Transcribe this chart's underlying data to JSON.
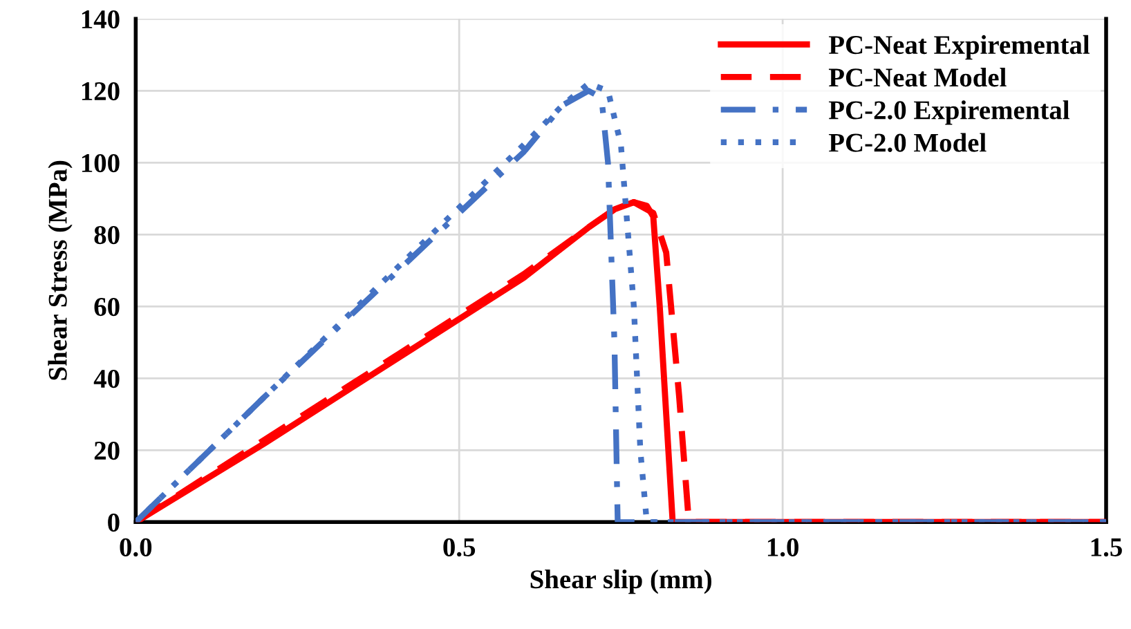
{
  "chart_data": {
    "type": "line",
    "xlabel": "Shear slip (mm)",
    "ylabel": "Shear Stress (MPa)",
    "xlim": [
      0,
      1.5
    ],
    "xticks": [
      {
        "value": 0,
        "label": "0.0"
      },
      0.5,
      {
        "value": 1,
        "label": "1.0"
      },
      1.5
    ],
    "ylim": [
      0,
      140
    ],
    "yticks": [
      0,
      20,
      40,
      60,
      80,
      100,
      120,
      140
    ],
    "grid": true,
    "legend": "top right",
    "series": [
      {
        "name": "PC-Neat Expiremental",
        "color": "#ff0000",
        "line_style": "solid",
        "x": [
          0,
          0.2,
          0.4,
          0.6,
          0.7,
          0.74,
          0.77,
          0.79,
          0.8,
          0.81,
          0.82,
          0.83,
          0.9,
          1.2,
          1.5
        ],
        "values": [
          0,
          22,
          45,
          68,
          82,
          87,
          89,
          88,
          85,
          60,
          30,
          0,
          0,
          0,
          0
        ]
      },
      {
        "name": "PC-Neat Model",
        "color": "#ff0000",
        "line_style": "dashed",
        "x": [
          0,
          0.2,
          0.4,
          0.6,
          0.7,
          0.74,
          0.77,
          0.8,
          0.82,
          0.84,
          0.855,
          0.9,
          1.2,
          1.5
        ],
        "values": [
          0,
          23,
          46,
          69,
          82,
          87,
          89,
          86,
          75,
          35,
          0,
          0,
          0,
          0
        ]
      },
      {
        "name": "PC-2.0 Expiremental",
        "color": "#4472c4",
        "line_style": "dashdot",
        "x": [
          0,
          0.2,
          0.4,
          0.6,
          0.66,
          0.7,
          0.72,
          0.73,
          0.74,
          0.745,
          0.8,
          1.2,
          1.5
        ],
        "values": [
          0,
          35,
          69,
          103,
          116,
          120,
          118,
          100,
          50,
          0,
          0,
          0,
          0
        ]
      },
      {
        "name": "PC-2.0 Model",
        "color": "#4472c4",
        "line_style": "dotted",
        "x": [
          0,
          0.2,
          0.4,
          0.6,
          0.66,
          0.7,
          0.73,
          0.75,
          0.77,
          0.78,
          0.79,
          0.85,
          1.2,
          1.5
        ],
        "values": [
          0,
          35,
          70,
          105,
          116,
          122,
          120,
          105,
          60,
          20,
          0,
          0,
          0,
          0
        ]
      }
    ]
  }
}
